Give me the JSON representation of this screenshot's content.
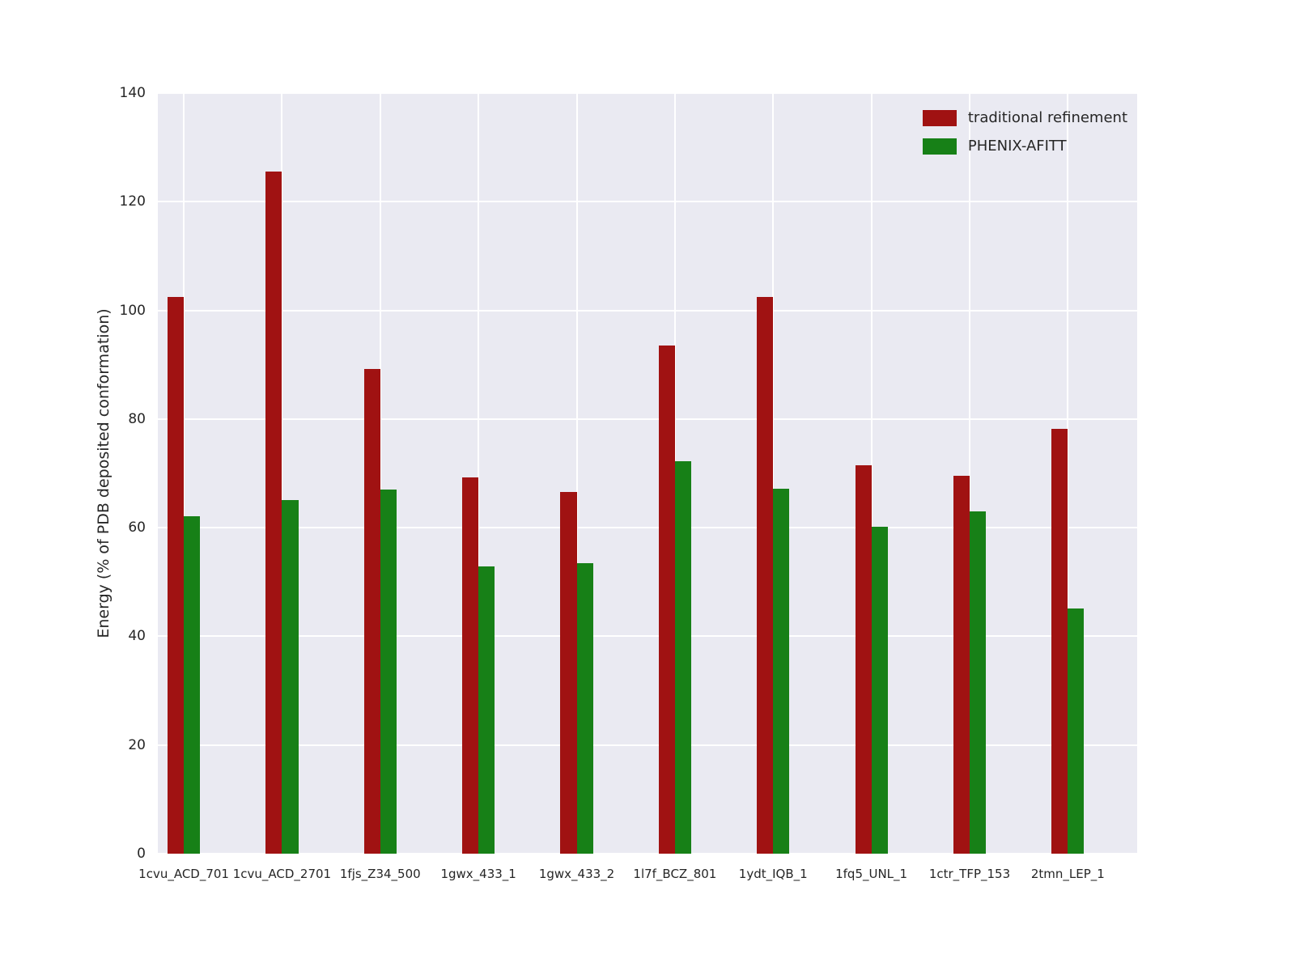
{
  "chart_data": {
    "type": "bar",
    "title": "",
    "xlabel": "",
    "ylabel": "Energy (% of PDB deposited conformation)",
    "ylim": [
      0,
      140
    ],
    "yticks": [
      0,
      20,
      40,
      60,
      80,
      100,
      120,
      140
    ],
    "grid": true,
    "legend_position": "upper right",
    "plot_background": "#eaeaf2",
    "grid_color": "#ffffff",
    "tick_label_color": "#262626",
    "categories": [
      "1cvu_ACD_701",
      "1cvu_ACD_2701",
      "1fjs_Z34_500",
      "1gwx_433_1",
      "1gwx_433_2",
      "1l7f_BCZ_801",
      "1ydt_IQB_1",
      "1fq5_UNL_1",
      "1ctr_TFP_153",
      "2tmn_LEP_1"
    ],
    "series": [
      {
        "name": "traditional refinement",
        "color": "#a01212",
        "values": [
          102.5,
          125.5,
          89.2,
          69.2,
          66.6,
          93.5,
          102.5,
          71.5,
          69.5,
          78.2
        ]
      },
      {
        "name": "PHENIX-AFITT",
        "color": "#178017",
        "values": [
          62.1,
          65.1,
          67.0,
          52.8,
          53.5,
          72.3,
          67.2,
          60.1,
          63.0,
          45.2
        ]
      }
    ]
  }
}
